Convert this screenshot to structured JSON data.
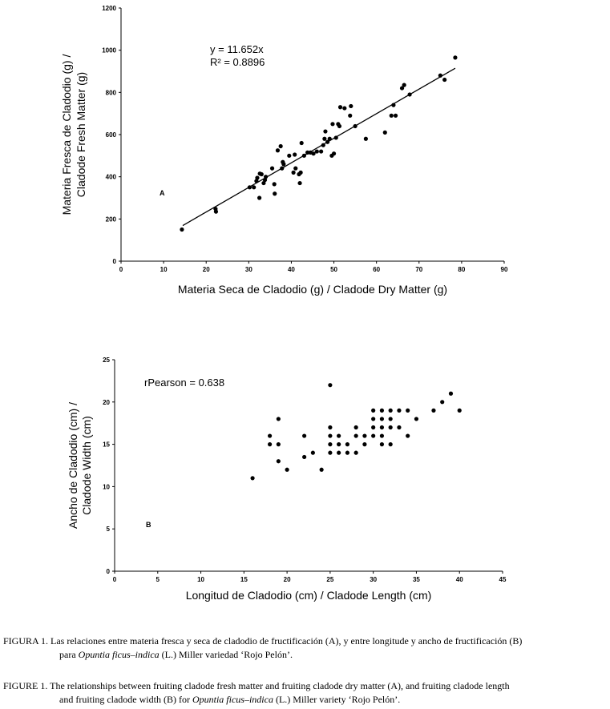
{
  "chart_data": [
    {
      "type": "scatter",
      "panel_label": "A",
      "xlabel": "Materia Seca de Cladodio (g) / Cladode Dry Matter (g)",
      "ylabel_lines": [
        "Materia Fresca de Cladodio (g) /",
        "Cladode Fresh Matter (g)"
      ],
      "xlim": [
        0,
        90
      ],
      "ylim": [
        0,
        1200
      ],
      "xticks": [
        0,
        10,
        20,
        30,
        40,
        50,
        60,
        70,
        80,
        90
      ],
      "yticks": [
        0,
        200,
        400,
        600,
        800,
        1000,
        1200
      ],
      "annotation_lines": [
        "y = 11.652x",
        "R² = 0.8896"
      ],
      "trendline": {
        "slope": 11.652,
        "x_range": [
          14.5,
          78.5
        ]
      },
      "points": [
        [
          14.3,
          150
        ],
        [
          22.2,
          248
        ],
        [
          22.3,
          235
        ],
        [
          30.2,
          350
        ],
        [
          31.2,
          350
        ],
        [
          31.8,
          380
        ],
        [
          32.0,
          395
        ],
        [
          32.5,
          300
        ],
        [
          32.6,
          415
        ],
        [
          33.0,
          412
        ],
        [
          33.5,
          370
        ],
        [
          33.8,
          385
        ],
        [
          34.0,
          400
        ],
        [
          35.5,
          440
        ],
        [
          36.0,
          365
        ],
        [
          36.1,
          320
        ],
        [
          36.8,
          525
        ],
        [
          37.5,
          545
        ],
        [
          37.8,
          440
        ],
        [
          38.0,
          470
        ],
        [
          38.2,
          460
        ],
        [
          39.5,
          500
        ],
        [
          40.5,
          420
        ],
        [
          40.8,
          505
        ],
        [
          41.0,
          440
        ],
        [
          41.8,
          412
        ],
        [
          42.0,
          370
        ],
        [
          42.2,
          420
        ],
        [
          42.4,
          560
        ],
        [
          43.0,
          500
        ],
        [
          43.8,
          515
        ],
        [
          44.5,
          515
        ],
        [
          45.2,
          510
        ],
        [
          46.0,
          520
        ],
        [
          47.0,
          520
        ],
        [
          47.5,
          550
        ],
        [
          47.8,
          580
        ],
        [
          48.0,
          615
        ],
        [
          48.5,
          565
        ],
        [
          49.0,
          580
        ],
        [
          49.5,
          500
        ],
        [
          49.7,
          650
        ],
        [
          50.0,
          510
        ],
        [
          50.5,
          585
        ],
        [
          51.0,
          650
        ],
        [
          51.3,
          640
        ],
        [
          51.5,
          730
        ],
        [
          52.5,
          725
        ],
        [
          53.8,
          690
        ],
        [
          54.0,
          735
        ],
        [
          55.0,
          640
        ],
        [
          57.5,
          580
        ],
        [
          62.0,
          610
        ],
        [
          63.5,
          690
        ],
        [
          64.0,
          740
        ],
        [
          64.5,
          690
        ],
        [
          66.0,
          820
        ],
        [
          66.5,
          835
        ],
        [
          67.8,
          790
        ],
        [
          75.0,
          880
        ],
        [
          76.0,
          860
        ],
        [
          78.5,
          965
        ]
      ]
    },
    {
      "type": "scatter",
      "panel_label": "B",
      "xlabel": "Longitud de Cladodio (cm) / Cladode Length (cm)",
      "ylabel_lines": [
        "Ancho de Cladodio (cm) /",
        "Cladode Width (cm)"
      ],
      "xlim": [
        0,
        45
      ],
      "ylim": [
        0,
        25
      ],
      "xticks": [
        0,
        5,
        10,
        15,
        20,
        25,
        30,
        35,
        40,
        45
      ],
      "yticks": [
        0,
        5,
        10,
        15,
        20,
        25
      ],
      "annotation_lines": [
        "rPearson = 0.638"
      ],
      "points": [
        [
          16,
          11
        ],
        [
          18,
          16
        ],
        [
          18,
          15
        ],
        [
          19,
          18
        ],
        [
          19,
          15
        ],
        [
          19,
          13
        ],
        [
          20,
          12
        ],
        [
          22,
          16
        ],
        [
          22,
          13.5
        ],
        [
          23,
          14
        ],
        [
          24,
          12
        ],
        [
          25,
          22
        ],
        [
          25,
          17
        ],
        [
          25,
          16
        ],
        [
          25,
          15
        ],
        [
          25,
          14
        ],
        [
          26,
          16
        ],
        [
          26,
          15
        ],
        [
          26,
          14
        ],
        [
          27,
          15
        ],
        [
          27,
          14
        ],
        [
          28,
          17
        ],
        [
          28,
          16
        ],
        [
          28,
          14
        ],
        [
          29,
          16
        ],
        [
          29,
          15
        ],
        [
          30,
          19
        ],
        [
          30,
          18
        ],
        [
          30,
          17
        ],
        [
          30,
          16
        ],
        [
          31,
          19
        ],
        [
          31,
          18
        ],
        [
          31,
          17
        ],
        [
          31,
          16
        ],
        [
          31,
          15
        ],
        [
          32,
          19
        ],
        [
          32,
          18
        ],
        [
          32,
          17
        ],
        [
          32,
          15
        ],
        [
          33,
          19
        ],
        [
          33,
          17
        ],
        [
          34,
          19
        ],
        [
          34,
          16
        ],
        [
          35,
          18
        ],
        [
          37,
          19
        ],
        [
          38,
          20
        ],
        [
          39,
          21
        ],
        [
          40,
          19
        ]
      ]
    }
  ],
  "captions": {
    "es": {
      "label": "FIGURA 1.",
      "line1": "Las relaciones entre materia fresca y seca de cladodio de fructificación (A), y entre longitude y ancho de fructificación (B)",
      "line2_pre": "para ",
      "species": "Opuntia ficus–indica",
      "line2_post": " (L.) Miller variedad ‘Rojo Pelón’."
    },
    "en": {
      "label": "FIGURE 1.",
      "line1": "The relationships between fruiting cladode fresh matter and fruiting cladode dry matter (A), and fruiting cladode length",
      "line2_pre": "and fruiting cladode width (B) for ",
      "species": "Opuntia ficus–indica",
      "line2_post": " (L.) Miller variety ‘Rojo Pelón’."
    }
  }
}
